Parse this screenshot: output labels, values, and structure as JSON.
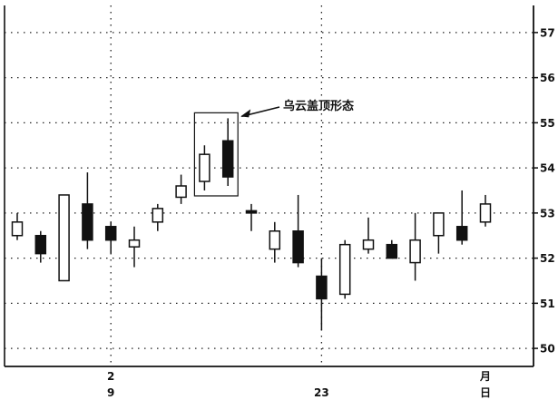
{
  "chart_data": {
    "type": "candlestick",
    "title": "",
    "xlabel": "",
    "ylabel": "",
    "ylim": [
      49.6,
      57.6
    ],
    "y_ticks": [
      50,
      51,
      52,
      53,
      54,
      55,
      56,
      57
    ],
    "x_tick_labels": [
      {
        "label": "2",
        "row": "upper",
        "index": 4
      },
      {
        "label": "9",
        "row": "lower",
        "index": 4
      },
      {
        "label": "23",
        "row": "lower",
        "index": 13
      },
      {
        "label": "月",
        "row": "upper",
        "index": 20
      },
      {
        "label": "日",
        "row": "lower",
        "index": 20
      }
    ],
    "candles": [
      {
        "open": 52.5,
        "close": 52.8,
        "high": 53.0,
        "low": 52.4
      },
      {
        "open": 52.5,
        "close": 52.1,
        "high": 52.6,
        "low": 51.9
      },
      {
        "open": 51.5,
        "close": 53.4,
        "high": 53.4,
        "low": 51.5
      },
      {
        "open": 53.2,
        "close": 52.4,
        "high": 53.9,
        "low": 52.2
      },
      {
        "open": 52.7,
        "close": 52.4,
        "high": 52.8,
        "low": 52.1
      },
      {
        "open": 52.25,
        "close": 52.4,
        "high": 52.7,
        "low": 51.8
      },
      {
        "open": 52.8,
        "close": 53.1,
        "high": 53.2,
        "low": 52.6
      },
      {
        "open": 53.35,
        "close": 53.6,
        "high": 53.85,
        "low": 53.2
      },
      {
        "open": 53.7,
        "close": 54.3,
        "high": 54.5,
        "low": 53.5
      },
      {
        "open": 54.6,
        "close": 53.8,
        "high": 55.1,
        "low": 53.6
      },
      {
        "open": 53.05,
        "close": 53.0,
        "high": 53.2,
        "low": 52.6
      },
      {
        "open": 52.2,
        "close": 52.6,
        "high": 52.8,
        "low": 51.9
      },
      {
        "open": 52.6,
        "close": 51.9,
        "high": 53.4,
        "low": 51.8
      },
      {
        "open": 51.6,
        "close": 51.1,
        "high": 52.0,
        "low": 50.4
      },
      {
        "open": 51.2,
        "close": 52.3,
        "high": 52.4,
        "low": 51.1
      },
      {
        "open": 52.2,
        "close": 52.4,
        "high": 52.9,
        "low": 52.1
      },
      {
        "open": 52.3,
        "close": 52.0,
        "high": 52.4,
        "low": 52.0
      },
      {
        "open": 51.9,
        "close": 52.4,
        "high": 53.0,
        "low": 51.5
      },
      {
        "open": 52.5,
        "close": 53.0,
        "high": 53.0,
        "low": 52.1
      },
      {
        "open": 52.7,
        "close": 52.4,
        "high": 53.5,
        "low": 52.3
      },
      {
        "open": 52.8,
        "close": 53.2,
        "high": 53.4,
        "low": 52.7
      }
    ],
    "annotation": {
      "text": "乌云盖顶形态",
      "candles": [
        8,
        9
      ]
    },
    "grid": true
  },
  "colors": {
    "axis": "#111111",
    "grid": "#222222",
    "up_fill": "#ffffff",
    "down_fill": "#111111",
    "background": "#ffffff"
  }
}
